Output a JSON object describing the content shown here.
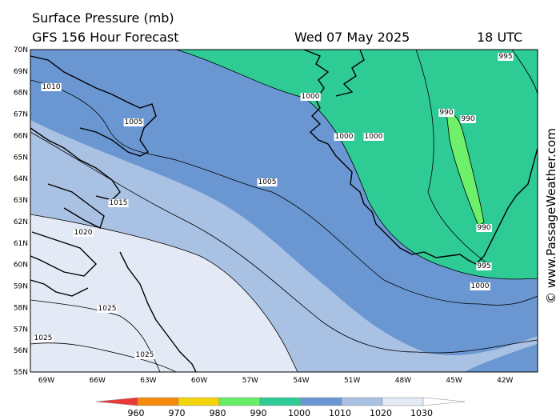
{
  "header": {
    "title": "Surface Pressure (mb)",
    "subtitle": "GFS 156 Hour Forecast",
    "date": "Wed 07 May 2025",
    "time": "18 UTC"
  },
  "map": {
    "lat_labels": [
      "70N",
      "69N",
      "68N",
      "67N",
      "66N",
      "65N",
      "64N",
      "63N",
      "62N",
      "61N",
      "60N",
      "59N",
      "58N",
      "57N",
      "56N",
      "55N"
    ],
    "lon_labels": [
      "69W",
      "66W",
      "63W",
      "60W",
      "57W",
      "54W",
      "51W",
      "48W",
      "45W",
      "42W"
    ],
    "contour_labels": [
      "1010",
      "1005",
      "1015",
      "1020",
      "1025",
      "1025",
      "1025",
      "1005",
      "1000",
      "1000",
      "1000",
      "990",
      "990",
      "990",
      "995",
      "995",
      "1000"
    ]
  },
  "legend": {
    "ticks": [
      960,
      970,
      980,
      990,
      1000,
      1010,
      1020,
      1030
    ],
    "colors": [
      "#e8383a",
      "#f58a0b",
      "#f5d40a",
      "#66ee66",
      "#2ecb95",
      "#6a96d2",
      "#a9c1e3",
      "#e3e9f5",
      "#ffffff"
    ]
  },
  "watermark": "© www.PassageWeather.com"
}
